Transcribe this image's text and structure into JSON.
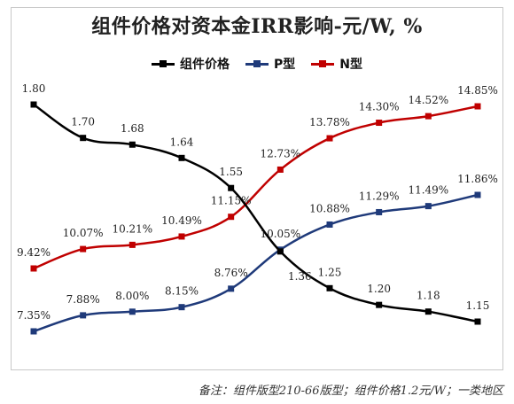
{
  "chart_data": {
    "type": "line",
    "title": "组件价格对资本金IRR影响-元/W, %",
    "xlabel": "",
    "ylabel": "",
    "grid": false,
    "legend_position": "top",
    "categories": [
      "",
      "",
      "",
      "",
      "",
      "",
      "",
      "",
      "",
      ""
    ],
    "series": [
      {
        "name": "组件价格",
        "color": "#000000",
        "values": [
          1.8,
          1.7,
          1.68,
          1.64,
          1.55,
          1.36,
          1.25,
          1.2,
          1.18,
          1.15
        ],
        "labels": [
          "1.80",
          "1.70",
          "1.68",
          "1.64",
          "1.55",
          "1.36",
          "1.25",
          "1.20",
          "1.18",
          "1.15"
        ]
      },
      {
        "name": "P型",
        "color": "#1f3a7a",
        "values": [
          7.35,
          7.88,
          8.0,
          8.15,
          8.76,
          10.05,
          10.88,
          11.29,
          11.49,
          11.86
        ],
        "labels": [
          "7.35%",
          "7.88%",
          "8.00%",
          "8.15%",
          "8.76%",
          "10.05%",
          "10.88%",
          "11.29%",
          "11.49%",
          "11.86%"
        ]
      },
      {
        "name": "N型",
        "color": "#c00000",
        "values": [
          9.42,
          10.07,
          10.21,
          10.49,
          11.15,
          12.73,
          13.78,
          14.3,
          14.52,
          14.85
        ],
        "labels": [
          "9.42%",
          "10.07%",
          "10.21%",
          "10.49%",
          "11.15%",
          "12.73%",
          "13.78%",
          "14.30%",
          "14.52%",
          "14.85%"
        ]
      }
    ]
  },
  "footnote": "备注：组件版型210-66版型；组件价格1.2元/W；一类地区"
}
